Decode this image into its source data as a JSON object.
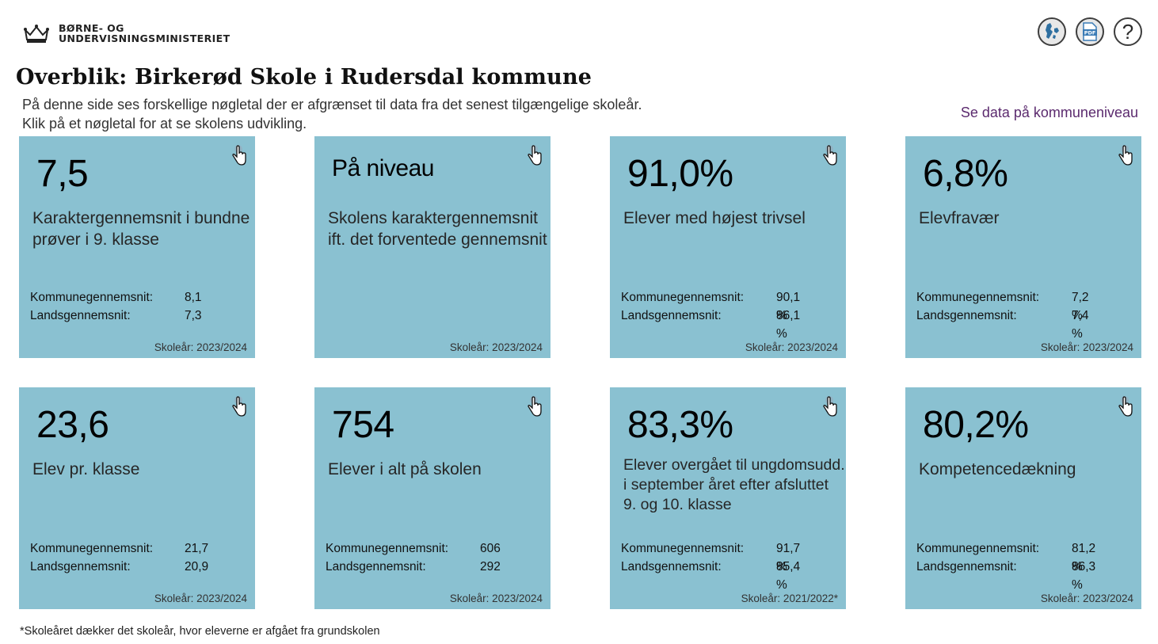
{
  "header": {
    "logo_line1": "BØRNE- OG",
    "logo_line2": "UNDERVISNINGSMINISTERIET",
    "icons": [
      "denmark-map-icon",
      "pdf-icon",
      "help-icon"
    ],
    "help_symbol": "?"
  },
  "page": {
    "title": "Overblik: Birkerød Skole i Rudersdal kommune",
    "intro_line1": "På denne side ses forskellige nøgletal der er afgrænset til data fra det senest tilgængelige skoleår.",
    "intro_line2": "Klik på et nøgletal for at se skolens udvikling.",
    "kommune_link": "Se data på kommuneniveau",
    "footnote": "*Skoleåret dækker det skoleår, hvor eleverne er afgået fra grundskolen"
  },
  "stat_labels": {
    "kommune": "Kommunegennemsnit:",
    "lands": "Landsgennemsnit:"
  },
  "cards": [
    {
      "value": "7,5",
      "label": "Karaktergennemsnit i bundne prøver i 9. klasse",
      "kommune": "8,1",
      "lands": "7,3",
      "year": "Skoleår: 2023/2024"
    },
    {
      "value": "På niveau",
      "label": "Skolens karaktergennemsnit ift. det forventede gennemsnit",
      "kommune": "",
      "lands": "",
      "year": "Skoleår: 2023/2024"
    },
    {
      "value": "91,0%",
      "label": "Elever med højest trivsel",
      "kommune": "90,1 %",
      "lands": "86,1 %",
      "year": "Skoleår: 2023/2024"
    },
    {
      "value": "6,8%",
      "label": "Elevfravær",
      "kommune": "7,2 %",
      "lands": "7,4 %",
      "year": "Skoleår: 2023/2024"
    },
    {
      "value": "23,6",
      "label": "Elev pr. klasse",
      "kommune": "21,7",
      "lands": "20,9",
      "year": "Skoleår: 2023/2024"
    },
    {
      "value": "754",
      "label": "Elever i alt på skolen",
      "kommune": "606",
      "lands": "292",
      "year": "Skoleår: 2023/2024"
    },
    {
      "value": "83,3%",
      "label": "Elever overgået til ungdomsudd. i september året efter afsluttet 9. og 10. klasse",
      "kommune": "91,7 %",
      "lands": "85,4 %",
      "year": "Skoleår: 2021/2022*"
    },
    {
      "value": "80,2%",
      "label": "Kompetencedækning",
      "kommune": "81,2 %",
      "lands": "86,3 %",
      "year": "Skoleår: 2023/2024"
    }
  ],
  "colors": {
    "card_bg": "#8ac1d1",
    "link": "#5b2a6e"
  }
}
